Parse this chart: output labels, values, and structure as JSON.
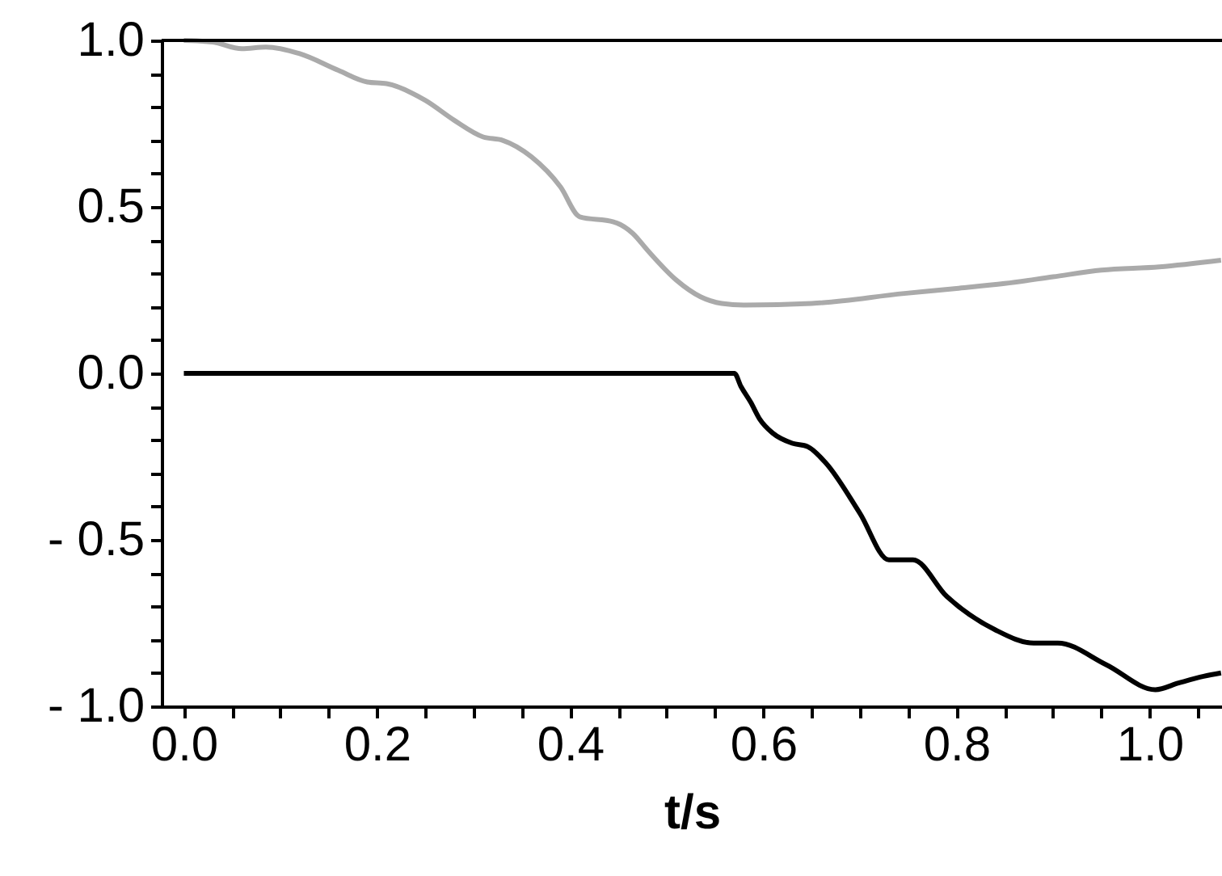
{
  "chart_data": {
    "type": "line",
    "xlabel": "t/s",
    "xlim": [
      -0.023,
      1.075
    ],
    "ylim": [
      -1.0,
      1.0
    ],
    "xticks": [
      {
        "value": 0.0,
        "label": "0.0"
      },
      {
        "value": 0.05,
        "label": null
      },
      {
        "value": 0.1,
        "label": null
      },
      {
        "value": 0.15,
        "label": null
      },
      {
        "value": 0.2,
        "label": "0.2"
      },
      {
        "value": 0.25,
        "label": null
      },
      {
        "value": 0.3,
        "label": null
      },
      {
        "value": 0.35,
        "label": null
      },
      {
        "value": 0.4,
        "label": "0.4"
      },
      {
        "value": 0.45,
        "label": null
      },
      {
        "value": 0.5,
        "label": null
      },
      {
        "value": 0.55,
        "label": null
      },
      {
        "value": 0.6,
        "label": "0.6"
      },
      {
        "value": 0.65,
        "label": null
      },
      {
        "value": 0.7,
        "label": null
      },
      {
        "value": 0.75,
        "label": null
      },
      {
        "value": 0.8,
        "label": "0.8"
      },
      {
        "value": 0.85,
        "label": null
      },
      {
        "value": 0.9,
        "label": null
      },
      {
        "value": 0.95,
        "label": null
      },
      {
        "value": 1.0,
        "label": "1.0"
      },
      {
        "value": 1.05,
        "label": null
      }
    ],
    "yticks": [
      {
        "value": -1.0,
        "label": "- 1.0"
      },
      {
        "value": -0.9,
        "label": null
      },
      {
        "value": -0.8,
        "label": null
      },
      {
        "value": -0.7,
        "label": null
      },
      {
        "value": -0.6,
        "label": null
      },
      {
        "value": -0.5,
        "label": "- 0.5"
      },
      {
        "value": -0.4,
        "label": null
      },
      {
        "value": -0.3,
        "label": null
      },
      {
        "value": -0.2,
        "label": null
      },
      {
        "value": -0.1,
        "label": null
      },
      {
        "value": 0.0,
        "label": "0.0"
      },
      {
        "value": 0.1,
        "label": null
      },
      {
        "value": 0.2,
        "label": null
      },
      {
        "value": 0.3,
        "label": null
      },
      {
        "value": 0.4,
        "label": null
      },
      {
        "value": 0.5,
        "label": "0.5"
      },
      {
        "value": 0.6,
        "label": null
      },
      {
        "value": 0.7,
        "label": null
      },
      {
        "value": 0.8,
        "label": null
      },
      {
        "value": 0.9,
        "label": null
      },
      {
        "value": 1.0,
        "label": "1.0"
      }
    ],
    "grid": false,
    "ref_lines": [
      {
        "axis": "y",
        "value": 1.0,
        "color": "#000000"
      }
    ],
    "series": [
      {
        "color": "#aaaaaa",
        "x": [
          0.0,
          0.03,
          0.06,
          0.085,
          0.12,
          0.16,
          0.19,
          0.21,
          0.25,
          0.28,
          0.31,
          0.33,
          0.36,
          0.39,
          0.41,
          0.445,
          0.465,
          0.48,
          0.51,
          0.535,
          0.557,
          0.58,
          0.65,
          0.746,
          0.8,
          0.85,
          0.9,
          0.95,
          1.01,
          1.074
        ],
        "values": [
          1.0,
          0.995,
          0.975,
          0.98,
          0.96,
          0.91,
          0.875,
          0.87,
          0.82,
          0.76,
          0.71,
          0.7,
          0.65,
          0.56,
          0.47,
          0.455,
          0.42,
          0.37,
          0.28,
          0.23,
          0.21,
          0.205,
          0.21,
          0.24,
          0.255,
          0.27,
          0.29,
          0.31,
          0.32,
          0.34
        ]
      },
      {
        "color": "#000000",
        "x": [
          0.0,
          0.57,
          0.577,
          0.587,
          0.596,
          0.61,
          0.63,
          0.646,
          0.665,
          0.7,
          0.73,
          0.755,
          0.79,
          0.84,
          0.88,
          0.905,
          0.955,
          1.006,
          1.03,
          1.056,
          1.074
        ],
        "values": [
          0.0,
          0.0,
          -0.04,
          -0.087,
          -0.136,
          -0.18,
          -0.21,
          -0.22,
          -0.27,
          -0.42,
          -0.56,
          -0.56,
          -0.67,
          -0.77,
          -0.81,
          -0.81,
          -0.875,
          -0.95,
          -0.93,
          -0.91,
          -0.9
        ]
      }
    ]
  }
}
